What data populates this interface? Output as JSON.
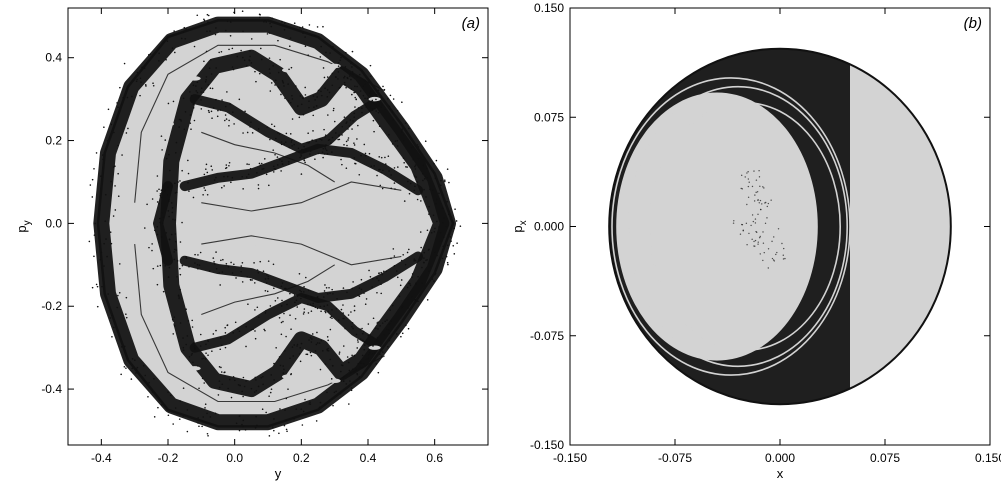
{
  "colors": {
    "background": "#ffffff",
    "region_fill": "#d3d3d3",
    "orbit_points": "#111111",
    "axis": "#000000"
  },
  "chart_data": [
    {
      "type": "scatter",
      "panel_label": "(a)",
      "title": "",
      "xlabel": "y",
      "ylabel": "p",
      "ylabel_subscript": "y",
      "xlim": [
        -0.5,
        0.76
      ],
      "ylim": [
        -0.535,
        0.52
      ],
      "x_ticks": [
        -0.4,
        -0.2,
        0.0,
        0.2,
        0.4,
        0.6
      ],
      "x_tick_labels": [
        "-0.4",
        "-0.2",
        "0.0",
        "0.2",
        "0.4",
        "0.6"
      ],
      "y_ticks": [
        -0.4,
        -0.2,
        0.0,
        0.2,
        0.4
      ],
      "y_tick_labels": [
        "-0.4",
        "-0.2",
        "0.0",
        "0.2",
        "0.4"
      ],
      "grid": false,
      "region_boundary": [
        [
          -0.41,
          0.0
        ],
        [
          -0.39,
          0.17
        ],
        [
          -0.32,
          0.33
        ],
        [
          -0.2,
          0.45
        ],
        [
          -0.05,
          0.49
        ],
        [
          0.1,
          0.49
        ],
        [
          0.25,
          0.45
        ],
        [
          0.38,
          0.37
        ],
        [
          0.5,
          0.24
        ],
        [
          0.6,
          0.12
        ],
        [
          0.655,
          0.0
        ],
        [
          0.6,
          -0.12
        ],
        [
          0.5,
          -0.24
        ],
        [
          0.38,
          -0.37
        ],
        [
          0.25,
          -0.45
        ],
        [
          0.1,
          -0.49
        ],
        [
          -0.05,
          -0.49
        ],
        [
          -0.2,
          -0.45
        ],
        [
          -0.32,
          -0.33
        ],
        [
          -0.39,
          -0.17
        ]
      ],
      "chaotic_bands": [
        [
          [
            -0.4,
            0.0
          ],
          [
            -0.38,
            0.17
          ],
          [
            -0.31,
            0.33
          ],
          [
            -0.19,
            0.44
          ],
          [
            -0.05,
            0.48
          ],
          [
            0.1,
            0.48
          ],
          [
            0.25,
            0.44
          ],
          [
            0.38,
            0.36
          ],
          [
            0.5,
            0.23
          ],
          [
            0.6,
            0.11
          ],
          [
            0.64,
            0.0
          ],
          [
            0.6,
            -0.11
          ],
          [
            0.5,
            -0.23
          ],
          [
            0.38,
            -0.36
          ],
          [
            0.25,
            -0.44
          ],
          [
            0.1,
            -0.48
          ],
          [
            -0.05,
            -0.48
          ],
          [
            -0.19,
            -0.44
          ],
          [
            -0.31,
            -0.33
          ],
          [
            -0.38,
            -0.17
          ],
          [
            -0.4,
            0.0
          ]
        ],
        [
          [
            -0.2,
            0.0
          ],
          [
            -0.19,
            0.15
          ],
          [
            -0.14,
            0.3
          ],
          [
            -0.06,
            0.38
          ],
          [
            0.05,
            0.4
          ],
          [
            0.13,
            0.36
          ],
          [
            0.2,
            0.28
          ],
          [
            0.26,
            0.3
          ],
          [
            0.32,
            0.36
          ],
          [
            0.38,
            0.33
          ],
          [
            0.45,
            0.25
          ],
          [
            0.55,
            0.14
          ],
          [
            0.62,
            0.0
          ],
          [
            0.55,
            -0.14
          ],
          [
            0.45,
            -0.25
          ],
          [
            0.38,
            -0.33
          ],
          [
            0.32,
            -0.36
          ],
          [
            0.26,
            -0.3
          ],
          [
            0.2,
            -0.28
          ],
          [
            0.13,
            -0.36
          ],
          [
            0.05,
            -0.4
          ],
          [
            -0.06,
            -0.38
          ],
          [
            -0.14,
            -0.3
          ],
          [
            -0.19,
            -0.15
          ],
          [
            -0.2,
            0.0
          ]
        ],
        [
          [
            -0.15,
            0.09
          ],
          [
            -0.05,
            0.11
          ],
          [
            0.05,
            0.12
          ],
          [
            0.15,
            0.15
          ],
          [
            0.25,
            0.18
          ],
          [
            0.35,
            0.17
          ],
          [
            0.45,
            0.13
          ],
          [
            0.55,
            0.08
          ]
        ],
        [
          [
            -0.15,
            -0.09
          ],
          [
            -0.05,
            -0.11
          ],
          [
            0.05,
            -0.12
          ],
          [
            0.15,
            -0.15
          ],
          [
            0.25,
            -0.18
          ],
          [
            0.35,
            -0.17
          ],
          [
            0.45,
            -0.13
          ],
          [
            0.55,
            -0.08
          ]
        ],
        [
          [
            -0.12,
            0.3
          ],
          [
            -0.02,
            0.28
          ],
          [
            0.1,
            0.22
          ],
          [
            0.2,
            0.18
          ],
          [
            0.28,
            0.2
          ],
          [
            0.36,
            0.26
          ],
          [
            0.42,
            0.29
          ]
        ],
        [
          [
            -0.12,
            -0.3
          ],
          [
            -0.02,
            -0.28
          ],
          [
            0.1,
            -0.22
          ],
          [
            0.2,
            -0.18
          ],
          [
            0.28,
            -0.2
          ],
          [
            0.36,
            -0.26
          ],
          [
            0.42,
            -0.29
          ]
        ],
        [
          [
            -0.2,
            0.09
          ],
          [
            -0.23,
            0.0
          ],
          [
            -0.2,
            -0.09
          ]
        ]
      ],
      "thin_curves": [
        [
          [
            -0.3,
            0.05
          ],
          [
            -0.28,
            0.22
          ],
          [
            -0.2,
            0.36
          ],
          [
            -0.05,
            0.43
          ],
          [
            0.12,
            0.43
          ],
          [
            0.28,
            0.39
          ],
          [
            0.45,
            0.32
          ]
        ],
        [
          [
            -0.3,
            -0.05
          ],
          [
            -0.28,
            -0.22
          ],
          [
            -0.2,
            -0.36
          ],
          [
            -0.05,
            -0.43
          ],
          [
            0.12,
            -0.43
          ],
          [
            0.28,
            -0.39
          ],
          [
            0.45,
            -0.32
          ]
        ],
        [
          [
            -0.1,
            0.22
          ],
          [
            0.0,
            0.19
          ],
          [
            0.12,
            0.17
          ],
          [
            0.22,
            0.14
          ],
          [
            0.3,
            0.1
          ]
        ],
        [
          [
            -0.1,
            -0.22
          ],
          [
            0.0,
            -0.19
          ],
          [
            0.12,
            -0.17
          ],
          [
            0.22,
            -0.14
          ],
          [
            0.3,
            -0.1
          ]
        ],
        [
          [
            -0.1,
            0.05
          ],
          [
            0.05,
            0.03
          ],
          [
            0.2,
            0.05
          ],
          [
            0.35,
            0.1
          ],
          [
            0.5,
            0.08
          ]
        ],
        [
          [
            -0.1,
            -0.05
          ],
          [
            0.05,
            -0.03
          ],
          [
            0.2,
            -0.05
          ],
          [
            0.35,
            -0.1
          ],
          [
            0.5,
            -0.08
          ]
        ]
      ],
      "islands": [
        [
          -0.12,
          0.35
        ],
        [
          0.16,
          0.37
        ],
        [
          0.3,
          0.38
        ],
        [
          0.42,
          0.3
        ],
        [
          -0.2,
          0.24
        ],
        [
          -0.1,
          0.0
        ],
        [
          0.3,
          0.05
        ],
        [
          -0.12,
          -0.35
        ],
        [
          0.16,
          -0.37
        ],
        [
          0.3,
          -0.38
        ],
        [
          0.42,
          -0.3
        ],
        [
          -0.2,
          -0.24
        ],
        [
          0.3,
          -0.05
        ],
        [
          0.05,
          0.05
        ],
        [
          0.05,
          -0.05
        ]
      ]
    },
    {
      "type": "scatter",
      "panel_label": "(b)",
      "title": "",
      "xlabel": "x",
      "ylabel": "p",
      "ylabel_subscript": "x",
      "xlim": [
        -0.15,
        0.15
      ],
      "ylim": [
        -0.15,
        0.15
      ],
      "x_ticks": [
        -0.15,
        -0.075,
        0.0,
        0.075,
        0.15
      ],
      "x_tick_labels": [
        "-0.150",
        "-0.075",
        "0.000",
        "0.075",
        "0.150"
      ],
      "y_ticks": [
        -0.15,
        -0.075,
        0.0,
        0.075,
        0.15
      ],
      "y_tick_labels": [
        "-0.150",
        "-0.075",
        "0.000",
        "0.075",
        "0.150"
      ],
      "grid": false,
      "region_circle": {
        "center": [
          0.0,
          0.0
        ],
        "radius": 0.122
      },
      "chaotic_band": {
        "outer_arc_center": [
          0.0,
          0.0
        ],
        "outer_radius": 0.122,
        "inner_ellipse": {
          "center": [
            -0.045,
            0.0
          ],
          "rx": 0.072,
          "ry": 0.092
        },
        "right_edge_x": 0.05
      },
      "thin_arcs": [
        {
          "center": [
            -0.035,
            0.0
          ],
          "rx": 0.085,
          "ry": 0.102
        },
        {
          "center": [
            -0.03,
            0.0
          ],
          "rx": 0.078,
          "ry": 0.096
        },
        {
          "center": [
            -0.025,
            0.0
          ],
          "rx": 0.068,
          "ry": 0.085
        }
      ],
      "central_texture": [
        [
          -0.02,
          0.03
        ],
        [
          -0.015,
          0.01
        ],
        [
          -0.01,
          -0.01
        ],
        [
          -0.005,
          -0.02
        ],
        [
          -0.025,
          -0.005
        ],
        [
          -0.018,
          0.02
        ]
      ]
    }
  ]
}
